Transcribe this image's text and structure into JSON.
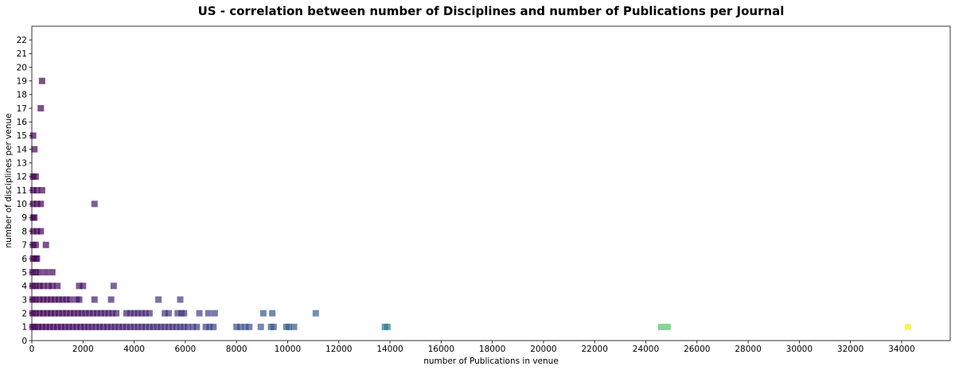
{
  "chart_data": {
    "type": "scatter",
    "title": "US - correlation between number of Disciplines and number of Publications per Journal",
    "xlabel": "number of Publications in venue",
    "ylabel": "number of disciplines per venue",
    "xlim": [
      0,
      35900
    ],
    "ylim": [
      0,
      23
    ],
    "xticks": [
      0,
      2000,
      4000,
      6000,
      8000,
      10000,
      12000,
      14000,
      16000,
      18000,
      20000,
      22000,
      24000,
      26000,
      28000,
      30000,
      32000,
      34000
    ],
    "yticks": [
      0,
      1,
      2,
      3,
      4,
      5,
      6,
      7,
      8,
      9,
      10,
      11,
      12,
      13,
      14,
      15,
      16,
      17,
      18,
      19,
      20,
      21,
      22
    ],
    "marker": "square",
    "colormap": "viridis",
    "color_by": "x",
    "grid": false,
    "legend": "none",
    "points": [
      {
        "x": 30,
        "y": 1
      },
      {
        "x": 120,
        "y": 1
      },
      {
        "x": 250,
        "y": 1
      },
      {
        "x": 400,
        "y": 1
      },
      {
        "x": 550,
        "y": 1
      },
      {
        "x": 700,
        "y": 1
      },
      {
        "x": 850,
        "y": 1
      },
      {
        "x": 1000,
        "y": 1
      },
      {
        "x": 1150,
        "y": 1
      },
      {
        "x": 1300,
        "y": 1
      },
      {
        "x": 1450,
        "y": 1
      },
      {
        "x": 1600,
        "y": 1
      },
      {
        "x": 1750,
        "y": 1
      },
      {
        "x": 1900,
        "y": 1
      },
      {
        "x": 2050,
        "y": 1
      },
      {
        "x": 2200,
        "y": 1
      },
      {
        "x": 2350,
        "y": 1
      },
      {
        "x": 2500,
        "y": 1
      },
      {
        "x": 2650,
        "y": 1
      },
      {
        "x": 2800,
        "y": 1
      },
      {
        "x": 2950,
        "y": 1
      },
      {
        "x": 3100,
        "y": 1
      },
      {
        "x": 3250,
        "y": 1
      },
      {
        "x": 3400,
        "y": 1
      },
      {
        "x": 3550,
        "y": 1
      },
      {
        "x": 3700,
        "y": 1
      },
      {
        "x": 3850,
        "y": 1
      },
      {
        "x": 4000,
        "y": 1
      },
      {
        "x": 4150,
        "y": 1
      },
      {
        "x": 4300,
        "y": 1
      },
      {
        "x": 4450,
        "y": 1
      },
      {
        "x": 4600,
        "y": 1
      },
      {
        "x": 4750,
        "y": 1
      },
      {
        "x": 4900,
        "y": 1
      },
      {
        "x": 5050,
        "y": 1
      },
      {
        "x": 5200,
        "y": 1
      },
      {
        "x": 5350,
        "y": 1
      },
      {
        "x": 5500,
        "y": 1
      },
      {
        "x": 5650,
        "y": 1
      },
      {
        "x": 5800,
        "y": 1
      },
      {
        "x": 5950,
        "y": 1
      },
      {
        "x": 6100,
        "y": 1
      },
      {
        "x": 6300,
        "y": 1
      },
      {
        "x": 6450,
        "y": 1
      },
      {
        "x": 6800,
        "y": 1
      },
      {
        "x": 6950,
        "y": 1
      },
      {
        "x": 7100,
        "y": 1
      },
      {
        "x": 8000,
        "y": 1
      },
      {
        "x": 8150,
        "y": 1
      },
      {
        "x": 8350,
        "y": 1
      },
      {
        "x": 8500,
        "y": 1
      },
      {
        "x": 8950,
        "y": 1
      },
      {
        "x": 9350,
        "y": 1
      },
      {
        "x": 9450,
        "y": 1
      },
      {
        "x": 9950,
        "y": 1
      },
      {
        "x": 10050,
        "y": 1
      },
      {
        "x": 10250,
        "y": 1
      },
      {
        "x": 13800,
        "y": 1
      },
      {
        "x": 13900,
        "y": 1
      },
      {
        "x": 24600,
        "y": 1
      },
      {
        "x": 24850,
        "y": 1
      },
      {
        "x": 34250,
        "y": 1
      },
      {
        "x": 30,
        "y": 2
      },
      {
        "x": 150,
        "y": 2
      },
      {
        "x": 300,
        "y": 2
      },
      {
        "x": 450,
        "y": 2
      },
      {
        "x": 600,
        "y": 2
      },
      {
        "x": 750,
        "y": 2
      },
      {
        "x": 900,
        "y": 2
      },
      {
        "x": 1050,
        "y": 2
      },
      {
        "x": 1200,
        "y": 2
      },
      {
        "x": 1350,
        "y": 2
      },
      {
        "x": 1500,
        "y": 2
      },
      {
        "x": 1650,
        "y": 2
      },
      {
        "x": 1800,
        "y": 2
      },
      {
        "x": 1950,
        "y": 2
      },
      {
        "x": 2100,
        "y": 2
      },
      {
        "x": 2250,
        "y": 2
      },
      {
        "x": 2400,
        "y": 2
      },
      {
        "x": 2550,
        "y": 2
      },
      {
        "x": 2700,
        "y": 2
      },
      {
        "x": 2850,
        "y": 2
      },
      {
        "x": 3000,
        "y": 2
      },
      {
        "x": 3150,
        "y": 2
      },
      {
        "x": 3300,
        "y": 2
      },
      {
        "x": 3700,
        "y": 2
      },
      {
        "x": 3850,
        "y": 2
      },
      {
        "x": 4000,
        "y": 2
      },
      {
        "x": 4150,
        "y": 2
      },
      {
        "x": 4300,
        "y": 2
      },
      {
        "x": 4450,
        "y": 2
      },
      {
        "x": 4600,
        "y": 2
      },
      {
        "x": 5200,
        "y": 2
      },
      {
        "x": 5350,
        "y": 2
      },
      {
        "x": 5700,
        "y": 2
      },
      {
        "x": 5850,
        "y": 2
      },
      {
        "x": 5950,
        "y": 2
      },
      {
        "x": 6550,
        "y": 2
      },
      {
        "x": 6900,
        "y": 2
      },
      {
        "x": 7150,
        "y": 2
      },
      {
        "x": 9050,
        "y": 2
      },
      {
        "x": 9400,
        "y": 2
      },
      {
        "x": 11100,
        "y": 2
      },
      {
        "x": 30,
        "y": 3
      },
      {
        "x": 150,
        "y": 3
      },
      {
        "x": 300,
        "y": 3
      },
      {
        "x": 450,
        "y": 3
      },
      {
        "x": 600,
        "y": 3
      },
      {
        "x": 750,
        "y": 3
      },
      {
        "x": 900,
        "y": 3
      },
      {
        "x": 1050,
        "y": 3
      },
      {
        "x": 1200,
        "y": 3
      },
      {
        "x": 1350,
        "y": 3
      },
      {
        "x": 1500,
        "y": 3
      },
      {
        "x": 1750,
        "y": 3
      },
      {
        "x": 1850,
        "y": 3
      },
      {
        "x": 2450,
        "y": 3
      },
      {
        "x": 3100,
        "y": 3
      },
      {
        "x": 4950,
        "y": 3
      },
      {
        "x": 5800,
        "y": 3
      },
      {
        "x": 30,
        "y": 4
      },
      {
        "x": 150,
        "y": 4
      },
      {
        "x": 300,
        "y": 4
      },
      {
        "x": 450,
        "y": 4
      },
      {
        "x": 650,
        "y": 4
      },
      {
        "x": 800,
        "y": 4
      },
      {
        "x": 1000,
        "y": 4
      },
      {
        "x": 1850,
        "y": 4
      },
      {
        "x": 2000,
        "y": 4
      },
      {
        "x": 3200,
        "y": 4
      },
      {
        "x": 30,
        "y": 5
      },
      {
        "x": 150,
        "y": 5
      },
      {
        "x": 300,
        "y": 5
      },
      {
        "x": 550,
        "y": 5
      },
      {
        "x": 800,
        "y": 5
      },
      {
        "x": 50,
        "y": 6
      },
      {
        "x": 150,
        "y": 6
      },
      {
        "x": 200,
        "y": 6
      },
      {
        "x": 50,
        "y": 7
      },
      {
        "x": 150,
        "y": 7
      },
      {
        "x": 550,
        "y": 7
      },
      {
        "x": 50,
        "y": 8
      },
      {
        "x": 200,
        "y": 8
      },
      {
        "x": 350,
        "y": 8
      },
      {
        "x": 50,
        "y": 9
      },
      {
        "x": 100,
        "y": 9
      },
      {
        "x": 50,
        "y": 10
      },
      {
        "x": 200,
        "y": 10
      },
      {
        "x": 350,
        "y": 10
      },
      {
        "x": 2450,
        "y": 10
      },
      {
        "x": 50,
        "y": 11
      },
      {
        "x": 200,
        "y": 11
      },
      {
        "x": 400,
        "y": 11
      },
      {
        "x": 50,
        "y": 12
      },
      {
        "x": 150,
        "y": 12
      },
      {
        "x": 100,
        "y": 14
      },
      {
        "x": 50,
        "y": 15
      },
      {
        "x": 350,
        "y": 17
      },
      {
        "x": 400,
        "y": 19
      }
    ]
  }
}
